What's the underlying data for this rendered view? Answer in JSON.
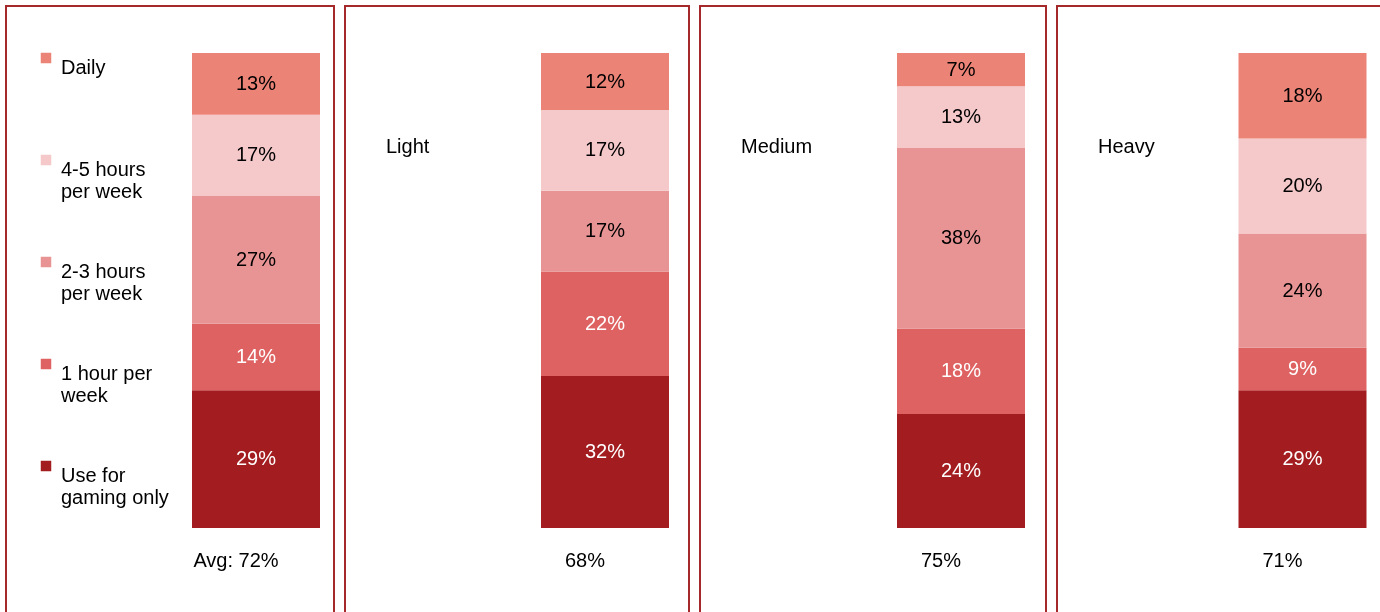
{
  "chart_data": [
    {
      "type": "bar",
      "stacked": true,
      "legend": "left",
      "categories": [
        "Avg: 72%"
      ],
      "series": [
        {
          "name": "Use for gaming only",
          "color": "#a31d20",
          "values": [
            29
          ],
          "value_labels": [
            "29%"
          ]
        },
        {
          "name": "1 hour per week",
          "color": "#de6262",
          "values": [
            14
          ],
          "value_labels": [
            "14%"
          ]
        },
        {
          "name": "2-3 hours per week",
          "color": "#e89494",
          "values": [
            27
          ],
          "value_labels": [
            "27%"
          ]
        },
        {
          "name": "4-5 hours per week",
          "color": "#f5c8ca",
          "values": [
            17
          ],
          "value_labels": [
            "17%"
          ]
        },
        {
          "name": "Daily",
          "color": "#ec8377",
          "values": [
            13
          ],
          "value_labels": [
            "13%"
          ]
        }
      ]
    },
    {
      "type": "bar",
      "stacked": true,
      "title": "Light",
      "categories": [
        "68%"
      ],
      "series": [
        {
          "color": "#a31d20",
          "values": [
            32
          ],
          "value_labels": [
            "32%"
          ]
        },
        {
          "color": "#de6262",
          "values": [
            22
          ],
          "value_labels": [
            "22%"
          ]
        },
        {
          "color": "#e89494",
          "values": [
            17
          ],
          "value_labels": [
            "17%"
          ]
        },
        {
          "color": "#f5c8ca",
          "values": [
            17
          ],
          "value_labels": [
            "17%"
          ]
        },
        {
          "color": "#ec8377",
          "values": [
            12
          ],
          "value_labels": [
            "12%"
          ]
        }
      ]
    },
    {
      "type": "bar",
      "stacked": true,
      "title": "Medium",
      "categories": [
        "75%"
      ],
      "series": [
        {
          "color": "#a31d20",
          "values": [
            24
          ],
          "value_labels": [
            "24%"
          ]
        },
        {
          "color": "#de6262",
          "values": [
            18
          ],
          "value_labels": [
            "18%"
          ]
        },
        {
          "color": "#e89494",
          "values": [
            38
          ],
          "value_labels": [
            "38%"
          ]
        },
        {
          "color": "#f5c8ca",
          "values": [
            13
          ],
          "value_labels": [
            "13%"
          ]
        },
        {
          "color": "#ec8377",
          "values": [
            7
          ],
          "value_labels": [
            "7%"
          ]
        }
      ]
    },
    {
      "type": "bar",
      "stacked": true,
      "title": "Heavy",
      "categories": [
        "71%"
      ],
      "series": [
        {
          "color": "#a31d20",
          "values": [
            29
          ],
          "value_labels": [
            "29%"
          ]
        },
        {
          "color": "#de6262",
          "values": [
            9
          ],
          "value_labels": [
            "9%"
          ]
        },
        {
          "color": "#e89494",
          "values": [
            24
          ],
          "value_labels": [
            "24%"
          ]
        },
        {
          "color": "#f5c8ca",
          "values": [
            20
          ],
          "value_labels": [
            "20%"
          ]
        },
        {
          "color": "#ec8377",
          "values": [
            18
          ],
          "value_labels": [
            "18%"
          ]
        }
      ]
    }
  ]
}
